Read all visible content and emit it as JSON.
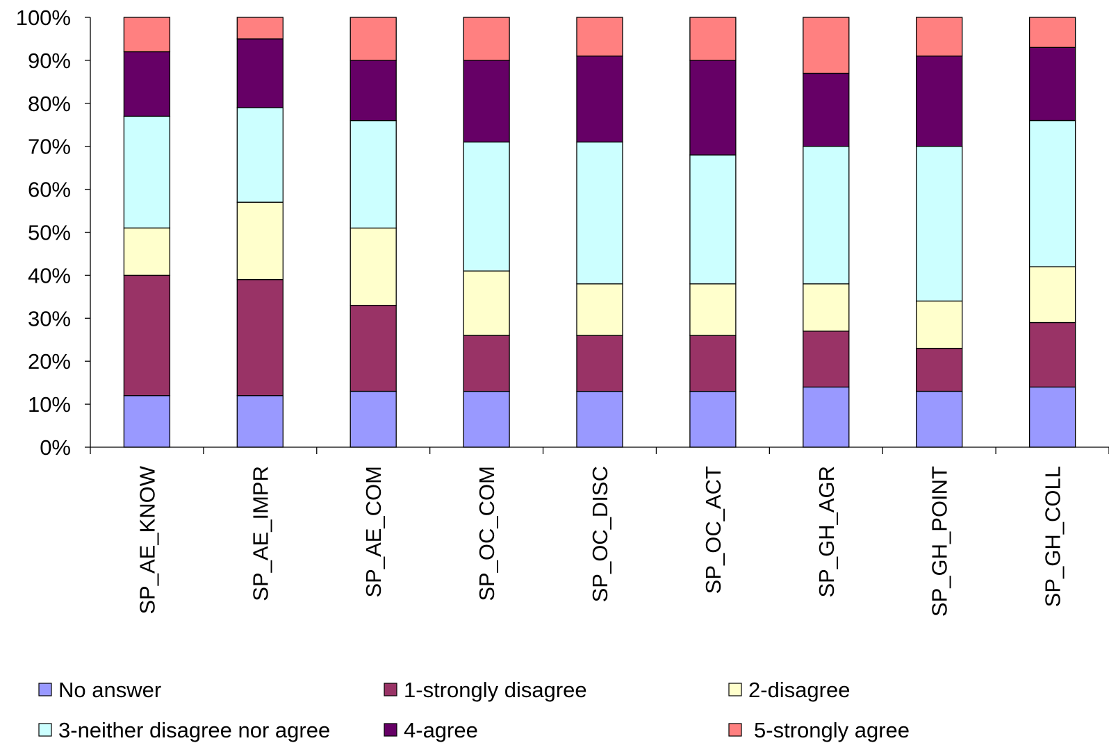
{
  "chart_data": {
    "type": "bar",
    "stacked": "percent",
    "categories": [
      "SP_AE_KNOW",
      "SP_AE_IMPR",
      "SP_AE_COM",
      "SP_OC_COM",
      "SP_OC_DISC",
      "SP_OC_ACT",
      "SP_GH_AGR",
      "SP_GH_POINT",
      "SP_GH_COLL"
    ],
    "series": [
      {
        "name": "No answer",
        "color": "#9999ff",
        "values": [
          12,
          12,
          13,
          13,
          13,
          13,
          14,
          13,
          14
        ]
      },
      {
        "name": "1-strongly disagree",
        "color": "#993366",
        "values": [
          28,
          27,
          20,
          13,
          13,
          13,
          13,
          10,
          15
        ]
      },
      {
        "name": "2-disagree",
        "color": "#ffffcc",
        "values": [
          11,
          18,
          18,
          15,
          12,
          12,
          11,
          11,
          13
        ]
      },
      {
        "name": "3-neither disagree nor agree",
        "color": "#ccffff",
        "values": [
          26,
          22,
          25,
          30,
          33,
          30,
          32,
          36,
          34
        ]
      },
      {
        "name": "4-agree",
        "color": "#660066",
        "values": [
          15,
          16,
          14,
          19,
          20,
          22,
          17,
          21,
          17
        ]
      },
      {
        "name": "5-strongly agree",
        "color": "#ff8080",
        "values": [
          8,
          5,
          10,
          10,
          9,
          10,
          13,
          9,
          7
        ]
      }
    ],
    "yticks": [
      "0%",
      "10%",
      "20%",
      "30%",
      "40%",
      "50%",
      "60%",
      "70%",
      "80%",
      "90%",
      "100%"
    ],
    "ylim": [
      0,
      100
    ],
    "title": "",
    "xlabel": "",
    "ylabel": "",
    "grid": false,
    "legend": "bottom"
  }
}
